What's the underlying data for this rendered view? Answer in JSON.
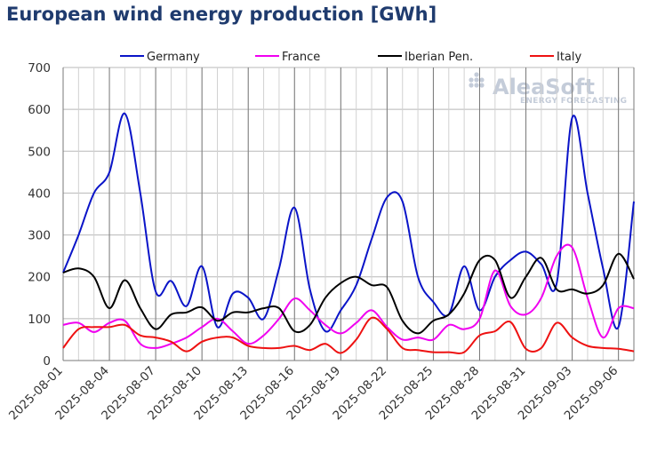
{
  "chart_data": {
    "type": "line",
    "title": "European wind energy production [GWh]",
    "ylim": [
      0,
      700
    ],
    "yticks": [
      0,
      100,
      200,
      300,
      400,
      500,
      600,
      700
    ],
    "xtick_labels": [
      "2025-08-01",
      "2025-08-04",
      "2025-08-07",
      "2025-08-10",
      "2025-08-13",
      "2025-08-16",
      "2025-08-19",
      "2025-08-22",
      "2025-08-25",
      "2025-08-28",
      "2025-08-31",
      "2025-09-03",
      "2025-09-06"
    ],
    "x_start_label": "2025-08-01",
    "x_days": 37,
    "grid": true,
    "legend_position": "top",
    "watermark": {
      "main": "AleaSoft",
      "sub": "ENERGY FORECASTING"
    },
    "series": [
      {
        "name": "Germany",
        "color": "#0a14c8",
        "values": [
          210,
          300,
          400,
          450,
          590,
          400,
          165,
          190,
          130,
          225,
          80,
          160,
          150,
          100,
          220,
          365,
          170,
          70,
          120,
          180,
          290,
          390,
          380,
          200,
          140,
          110,
          225,
          120,
          200,
          240,
          260,
          230,
          185,
          580,
          400,
          220,
          80,
          380
        ]
      },
      {
        "name": "France",
        "color": "#f000f0",
        "values": [
          85,
          90,
          68,
          90,
          95,
          40,
          30,
          40,
          55,
          80,
          100,
          70,
          40,
          60,
          100,
          148,
          120,
          85,
          65,
          90,
          120,
          80,
          50,
          55,
          50,
          85,
          75,
          100,
          215,
          130,
          110,
          150,
          250,
          270,
          150,
          55,
          125,
          125
        ]
      },
      {
        "name": "Iberian Pen.",
        "color": "#000000",
        "values": [
          210,
          220,
          200,
          125,
          192,
          125,
          75,
          110,
          115,
          127,
          95,
          115,
          115,
          125,
          125,
          70,
          85,
          150,
          185,
          200,
          180,
          175,
          95,
          65,
          95,
          110,
          160,
          240,
          240,
          150,
          200,
          245,
          170,
          170,
          160,
          180,
          255,
          195
        ]
      },
      {
        "name": "Italy",
        "color": "#ee1111",
        "values": [
          30,
          75,
          80,
          80,
          85,
          60,
          55,
          45,
          22,
          45,
          55,
          55,
          35,
          30,
          30,
          35,
          25,
          40,
          18,
          50,
          102,
          75,
          30,
          25,
          20,
          20,
          20,
          60,
          70,
          92,
          28,
          30,
          90,
          55,
          35,
          30,
          28,
          22
        ]
      }
    ]
  }
}
